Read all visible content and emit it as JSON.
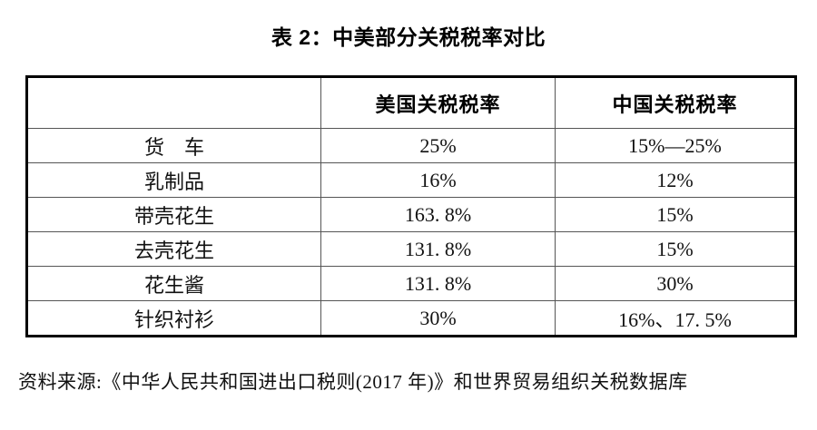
{
  "title": "表 2：中美部分关税税率对比",
  "chart_data": {
    "type": "table",
    "title": "表 2：中美部分关税税率对比",
    "columns": [
      "",
      "美国关税税率",
      "中国关税税率"
    ],
    "rows": [
      [
        "货　车",
        "25%",
        "15%—25%"
      ],
      [
        "乳制品",
        "16%",
        "12%"
      ],
      [
        "带壳花生",
        "163. 8%",
        "15%"
      ],
      [
        "去壳花生",
        "131. 8%",
        "15%"
      ],
      [
        "花生酱",
        "131. 8%",
        "30%"
      ],
      [
        "针织衬衫",
        "30%",
        "16%、17. 5%"
      ]
    ],
    "source": "资料来源:《中华人民共和国进出口税则(2017 年)》和世界贸易组织关税数据库"
  },
  "source_note": "资料来源:《中华人民共和国进出口税则(2017 年)》和世界贸易组织关税数据库",
  "colors": {
    "background": "#ffffff",
    "text": "#000000",
    "border_outer": "#000000",
    "border_inner": "#555555"
  }
}
